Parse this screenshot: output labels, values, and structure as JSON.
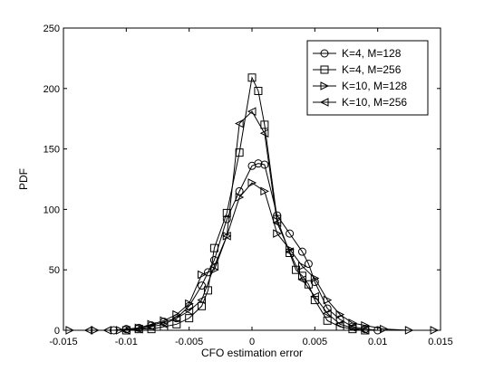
{
  "chart_data": {
    "type": "line",
    "title": "",
    "xlabel": "CFO estimation error",
    "ylabel": "PDF",
    "xlim": [
      -0.015,
      0.015
    ],
    "ylim": [
      0,
      250
    ],
    "xticks": [
      -0.015,
      -0.01,
      -0.005,
      0,
      0.005,
      0.01,
      0.015
    ],
    "xtick_labels": [
      "-0.015",
      "-0.01",
      "-0.005",
      "0",
      "0.005",
      "0.01",
      "0.015"
    ],
    "yticks": [
      0,
      50,
      100,
      150,
      200,
      250
    ],
    "ytick_labels": [
      "0",
      "50",
      "100",
      "150",
      "200",
      "250"
    ],
    "grid": false,
    "legend_position": "top-right",
    "series": [
      {
        "name": "K=4, M=128",
        "marker": "circle",
        "x": [
          -0.011,
          -0.01,
          -0.009,
          -0.008,
          -0.007,
          -0.006,
          -0.005,
          -0.004,
          -0.0035,
          -0.003,
          -0.002,
          -0.001,
          0,
          0.0005,
          0.001,
          0.002,
          0.003,
          0.004,
          0.0045,
          0.005,
          0.006,
          0.007,
          0.008,
          0.009,
          0.01
        ],
        "y": [
          0,
          1,
          2,
          4,
          7,
          10,
          20,
          37,
          48,
          58,
          92,
          115,
          136,
          138,
          137,
          95,
          80,
          65,
          55,
          40,
          18,
          9,
          3,
          1,
          0
        ]
      },
      {
        "name": "K=4, M=256",
        "marker": "square",
        "x": [
          -0.01,
          -0.009,
          -0.008,
          -0.007,
          -0.006,
          -0.005,
          -0.004,
          -0.0035,
          -0.003,
          -0.002,
          -0.001,
          0,
          0.0005,
          0.001,
          0.002,
          0.003,
          0.0035,
          0.004,
          0.0045,
          0.005,
          0.006,
          0.007,
          0.008,
          0.009
        ],
        "y": [
          0,
          1,
          1,
          3,
          5,
          10,
          20,
          33,
          68,
          97,
          147,
          209,
          198,
          170,
          92,
          64,
          50,
          45,
          38,
          25,
          8,
          3,
          1,
          0
        ]
      },
      {
        "name": "K=10, M=128",
        "marker": "triangle-right",
        "x": [
          -0.0145,
          -0.0125,
          -0.0105,
          -0.009,
          -0.008,
          -0.007,
          -0.006,
          -0.005,
          -0.004,
          -0.003,
          -0.002,
          -0.001,
          0,
          0.001,
          0.002,
          0.003,
          0.004,
          0.005,
          0.006,
          0.007,
          0.008,
          0.009,
          0.0105,
          0.0125,
          0.0145
        ],
        "y": [
          0,
          0,
          0,
          2,
          5,
          8,
          13,
          22,
          46,
          50,
          78,
          110,
          122,
          115,
          80,
          67,
          53,
          43,
          25,
          13,
          6,
          4,
          1,
          0,
          0
        ]
      },
      {
        "name": "K=10, M=256",
        "marker": "triangle-left",
        "x": [
          -0.013,
          -0.0115,
          -0.01,
          -0.009,
          -0.008,
          -0.007,
          -0.006,
          -0.005,
          -0.004,
          -0.003,
          -0.002,
          -0.001,
          0,
          0.001,
          0.002,
          0.003,
          0.004,
          0.005,
          0.006,
          0.007,
          0.008,
          0.009
        ],
        "y": [
          0,
          0,
          0,
          1,
          3,
          5,
          10,
          16,
          25,
          53,
          78,
          171,
          181,
          163,
          89,
          65,
          42,
          28,
          14,
          5,
          2,
          0
        ]
      }
    ]
  }
}
